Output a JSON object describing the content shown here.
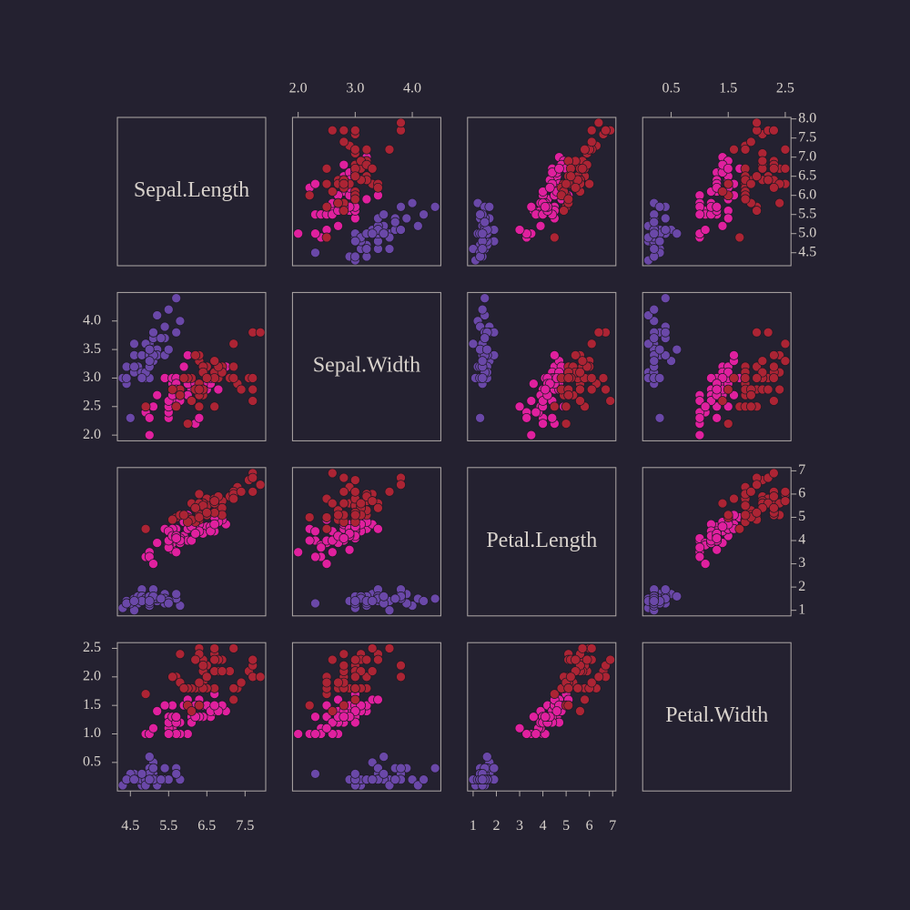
{
  "chart_data": {
    "type": "scatter-matrix",
    "variables": [
      {
        "name": "Sepal.Length",
        "lim": [
          4.16,
          8.04
        ],
        "xticks": [
          4.5,
          5.5,
          6.5,
          7.5
        ],
        "yticks": [
          4.5,
          {
            "value": 5,
            "label": "5.0"
          },
          5.5,
          {
            "value": 6,
            "label": "6.0"
          },
          6.5,
          {
            "value": 7,
            "label": "7.0"
          },
          7.5,
          {
            "value": 8,
            "label": "8.0"
          }
        ]
      },
      {
        "name": "Sepal.Width",
        "lim": [
          1.9,
          4.5
        ],
        "xticks": [
          {
            "value": 2,
            "label": "2.0"
          },
          {
            "value": 3,
            "label": "3.0"
          },
          {
            "value": 4,
            "label": "4.0"
          }
        ],
        "yticks": [
          {
            "value": 2,
            "label": "2.0"
          },
          2.5,
          {
            "value": 3,
            "label": "3.0"
          },
          3.5,
          {
            "value": 4,
            "label": "4.0"
          }
        ]
      },
      {
        "name": "Petal.Length",
        "lim": [
          0.76,
          7.14
        ],
        "xticks": [
          1,
          2,
          3,
          4,
          5,
          6,
          7
        ],
        "yticks": [
          1,
          2,
          3,
          4,
          5,
          6,
          7
        ]
      },
      {
        "name": "Petal.Width",
        "lim": [
          0.0,
          2.6
        ],
        "xticks": [
          0.5,
          1.5,
          2.5
        ],
        "yticks": [
          0.5,
          {
            "value": 1,
            "label": "1.0"
          },
          1.5,
          {
            "value": 2,
            "label": "2.0"
          },
          2.5
        ]
      }
    ],
    "series": [
      {
        "color": "#6a48a8",
        "points": [
          [
            5.1,
            3.5,
            1.4,
            0.2
          ],
          [
            4.9,
            3.0,
            1.4,
            0.2
          ],
          [
            4.7,
            3.2,
            1.3,
            0.2
          ],
          [
            4.6,
            3.1,
            1.5,
            0.2
          ],
          [
            5.0,
            3.6,
            1.4,
            0.2
          ],
          [
            5.4,
            3.9,
            1.7,
            0.4
          ],
          [
            4.6,
            3.4,
            1.4,
            0.3
          ],
          [
            5.0,
            3.4,
            1.5,
            0.2
          ],
          [
            4.4,
            2.9,
            1.4,
            0.2
          ],
          [
            4.9,
            3.1,
            1.5,
            0.1
          ],
          [
            5.4,
            3.7,
            1.5,
            0.2
          ],
          [
            4.8,
            3.4,
            1.6,
            0.2
          ],
          [
            4.8,
            3.0,
            1.4,
            0.1
          ],
          [
            4.3,
            3.0,
            1.1,
            0.1
          ],
          [
            5.8,
            4.0,
            1.2,
            0.2
          ],
          [
            5.7,
            4.4,
            1.5,
            0.4
          ],
          [
            5.4,
            3.9,
            1.3,
            0.4
          ],
          [
            5.1,
            3.5,
            1.4,
            0.3
          ],
          [
            5.7,
            3.8,
            1.7,
            0.3
          ],
          [
            5.1,
            3.8,
            1.5,
            0.3
          ],
          [
            5.4,
            3.4,
            1.7,
            0.2
          ],
          [
            5.1,
            3.7,
            1.5,
            0.4
          ],
          [
            4.6,
            3.6,
            1.0,
            0.2
          ],
          [
            5.1,
            3.3,
            1.7,
            0.5
          ],
          [
            4.8,
            3.4,
            1.9,
            0.2
          ],
          [
            5.0,
            3.0,
            1.6,
            0.2
          ],
          [
            5.0,
            3.4,
            1.6,
            0.4
          ],
          [
            5.2,
            3.5,
            1.5,
            0.2
          ],
          [
            5.2,
            3.4,
            1.4,
            0.2
          ],
          [
            4.7,
            3.2,
            1.6,
            0.2
          ],
          [
            4.8,
            3.1,
            1.6,
            0.2
          ],
          [
            5.4,
            3.4,
            1.5,
            0.4
          ],
          [
            5.2,
            4.1,
            1.5,
            0.1
          ],
          [
            5.5,
            4.2,
            1.4,
            0.2
          ],
          [
            4.9,
            3.1,
            1.5,
            0.2
          ],
          [
            5.0,
            3.2,
            1.2,
            0.2
          ],
          [
            5.5,
            3.5,
            1.3,
            0.2
          ],
          [
            4.9,
            3.6,
            1.4,
            0.1
          ],
          [
            4.4,
            3.0,
            1.3,
            0.2
          ],
          [
            5.1,
            3.4,
            1.5,
            0.2
          ],
          [
            5.0,
            3.5,
            1.3,
            0.3
          ],
          [
            4.5,
            2.3,
            1.3,
            0.3
          ],
          [
            4.4,
            3.2,
            1.3,
            0.2
          ],
          [
            5.0,
            3.5,
            1.6,
            0.6
          ],
          [
            5.1,
            3.8,
            1.9,
            0.4
          ],
          [
            4.8,
            3.0,
            1.4,
            0.3
          ],
          [
            5.1,
            3.8,
            1.6,
            0.2
          ],
          [
            4.6,
            3.2,
            1.4,
            0.2
          ],
          [
            5.3,
            3.7,
            1.5,
            0.2
          ],
          [
            5.0,
            3.3,
            1.4,
            0.2
          ]
        ]
      },
      {
        "color": "#e0209e",
        "points": [
          [
            7.0,
            3.2,
            4.7,
            1.4
          ],
          [
            6.4,
            3.2,
            4.5,
            1.5
          ],
          [
            6.9,
            3.1,
            4.9,
            1.5
          ],
          [
            5.5,
            2.3,
            4.0,
            1.3
          ],
          [
            6.5,
            2.8,
            4.6,
            1.5
          ],
          [
            5.7,
            2.8,
            4.5,
            1.3
          ],
          [
            6.3,
            3.3,
            4.7,
            1.6
          ],
          [
            4.9,
            2.4,
            3.3,
            1.0
          ],
          [
            6.6,
            2.9,
            4.6,
            1.3
          ],
          [
            5.2,
            2.7,
            3.9,
            1.4
          ],
          [
            5.0,
            2.0,
            3.5,
            1.0
          ],
          [
            5.9,
            3.0,
            4.2,
            1.5
          ],
          [
            6.0,
            2.2,
            4.0,
            1.0
          ],
          [
            6.1,
            2.9,
            4.7,
            1.4
          ],
          [
            5.6,
            2.9,
            3.6,
            1.3
          ],
          [
            6.7,
            3.1,
            4.4,
            1.4
          ],
          [
            5.6,
            3.0,
            4.5,
            1.5
          ],
          [
            5.8,
            2.7,
            4.1,
            1.0
          ],
          [
            6.2,
            2.2,
            4.5,
            1.5
          ],
          [
            5.6,
            2.5,
            3.9,
            1.1
          ],
          [
            5.9,
            3.2,
            4.8,
            1.8
          ],
          [
            6.1,
            2.8,
            4.0,
            1.3
          ],
          [
            6.3,
            2.5,
            4.9,
            1.5
          ],
          [
            6.1,
            2.8,
            4.7,
            1.2
          ],
          [
            6.4,
            2.9,
            4.3,
            1.3
          ],
          [
            6.6,
            3.0,
            4.4,
            1.4
          ],
          [
            6.8,
            2.8,
            4.8,
            1.4
          ],
          [
            6.7,
            3.0,
            5.0,
            1.7
          ],
          [
            6.0,
            2.9,
            4.5,
            1.5
          ],
          [
            5.7,
            2.6,
            3.5,
            1.0
          ],
          [
            5.5,
            2.4,
            3.8,
            1.1
          ],
          [
            5.5,
            2.4,
            3.7,
            1.0
          ],
          [
            5.8,
            2.7,
            3.9,
            1.2
          ],
          [
            6.0,
            2.7,
            5.1,
            1.6
          ],
          [
            5.4,
            3.0,
            4.5,
            1.5
          ],
          [
            6.0,
            3.4,
            4.5,
            1.6
          ],
          [
            6.7,
            3.1,
            4.7,
            1.5
          ],
          [
            6.3,
            2.3,
            4.4,
            1.3
          ],
          [
            5.6,
            3.0,
            4.1,
            1.3
          ],
          [
            5.5,
            2.5,
            4.0,
            1.3
          ],
          [
            5.5,
            2.6,
            4.4,
            1.2
          ],
          [
            6.1,
            3.0,
            4.6,
            1.4
          ],
          [
            5.8,
            2.6,
            4.0,
            1.2
          ],
          [
            5.0,
            2.3,
            3.3,
            1.0
          ],
          [
            5.6,
            2.7,
            4.2,
            1.3
          ],
          [
            5.7,
            3.0,
            4.2,
            1.2
          ],
          [
            5.7,
            2.9,
            4.2,
            1.3
          ],
          [
            6.2,
            2.9,
            4.3,
            1.3
          ],
          [
            5.1,
            2.5,
            3.0,
            1.1
          ],
          [
            5.7,
            2.8,
            4.1,
            1.3
          ]
        ]
      },
      {
        "color": "#ac2434",
        "points": [
          [
            6.3,
            3.3,
            6.0,
            2.5
          ],
          [
            5.8,
            2.7,
            5.1,
            1.9
          ],
          [
            7.1,
            3.0,
            5.9,
            2.1
          ],
          [
            6.3,
            2.9,
            5.6,
            1.8
          ],
          [
            6.5,
            3.0,
            5.8,
            2.2
          ],
          [
            7.6,
            3.0,
            6.6,
            2.1
          ],
          [
            4.9,
            2.5,
            4.5,
            1.7
          ],
          [
            7.3,
            2.9,
            6.3,
            1.8
          ],
          [
            6.7,
            2.5,
            5.8,
            1.8
          ],
          [
            7.2,
            3.6,
            6.1,
            2.5
          ],
          [
            6.5,
            3.2,
            5.1,
            2.0
          ],
          [
            6.4,
            2.7,
            5.3,
            1.9
          ],
          [
            6.8,
            3.0,
            5.5,
            2.1
          ],
          [
            5.7,
            2.5,
            5.0,
            2.0
          ],
          [
            5.8,
            2.8,
            5.1,
            2.4
          ],
          [
            6.4,
            3.2,
            5.3,
            2.3
          ],
          [
            6.5,
            3.0,
            5.5,
            1.8
          ],
          [
            7.7,
            3.8,
            6.7,
            2.2
          ],
          [
            7.7,
            2.6,
            6.9,
            2.3
          ],
          [
            6.0,
            2.2,
            5.0,
            1.5
          ],
          [
            6.9,
            3.2,
            5.7,
            2.3
          ],
          [
            5.6,
            2.8,
            4.9,
            2.0
          ],
          [
            7.7,
            2.8,
            6.7,
            2.0
          ],
          [
            6.3,
            2.7,
            4.9,
            1.8
          ],
          [
            6.7,
            3.3,
            5.7,
            2.1
          ],
          [
            7.2,
            3.2,
            6.0,
            1.8
          ],
          [
            6.2,
            2.8,
            4.8,
            1.8
          ],
          [
            6.1,
            3.0,
            4.9,
            1.8
          ],
          [
            6.4,
            2.8,
            5.6,
            2.1
          ],
          [
            7.2,
            3.0,
            5.8,
            1.6
          ],
          [
            7.4,
            2.8,
            6.1,
            1.9
          ],
          [
            7.9,
            3.8,
            6.4,
            2.0
          ],
          [
            6.4,
            2.8,
            5.6,
            2.2
          ],
          [
            6.3,
            2.8,
            5.1,
            1.5
          ],
          [
            6.1,
            2.6,
            5.6,
            1.4
          ],
          [
            7.7,
            3.0,
            6.1,
            2.3
          ],
          [
            6.3,
            3.4,
            5.6,
            2.4
          ],
          [
            6.4,
            3.1,
            5.5,
            1.8
          ],
          [
            6.0,
            3.0,
            4.8,
            1.8
          ],
          [
            6.9,
            3.1,
            5.4,
            2.1
          ],
          [
            6.7,
            3.1,
            5.6,
            2.4
          ],
          [
            6.9,
            3.1,
            5.1,
            2.3
          ],
          [
            5.8,
            2.7,
            5.1,
            1.9
          ],
          [
            6.8,
            3.2,
            5.9,
            2.3
          ],
          [
            6.7,
            3.3,
            5.7,
            2.5
          ],
          [
            6.7,
            3.0,
            5.2,
            2.3
          ],
          [
            6.3,
            2.5,
            5.0,
            1.9
          ],
          [
            6.5,
            3.0,
            5.2,
            2.0
          ],
          [
            6.2,
            3.4,
            5.4,
            2.3
          ],
          [
            5.9,
            3.0,
            5.1,
            1.8
          ]
        ]
      }
    ]
  }
}
